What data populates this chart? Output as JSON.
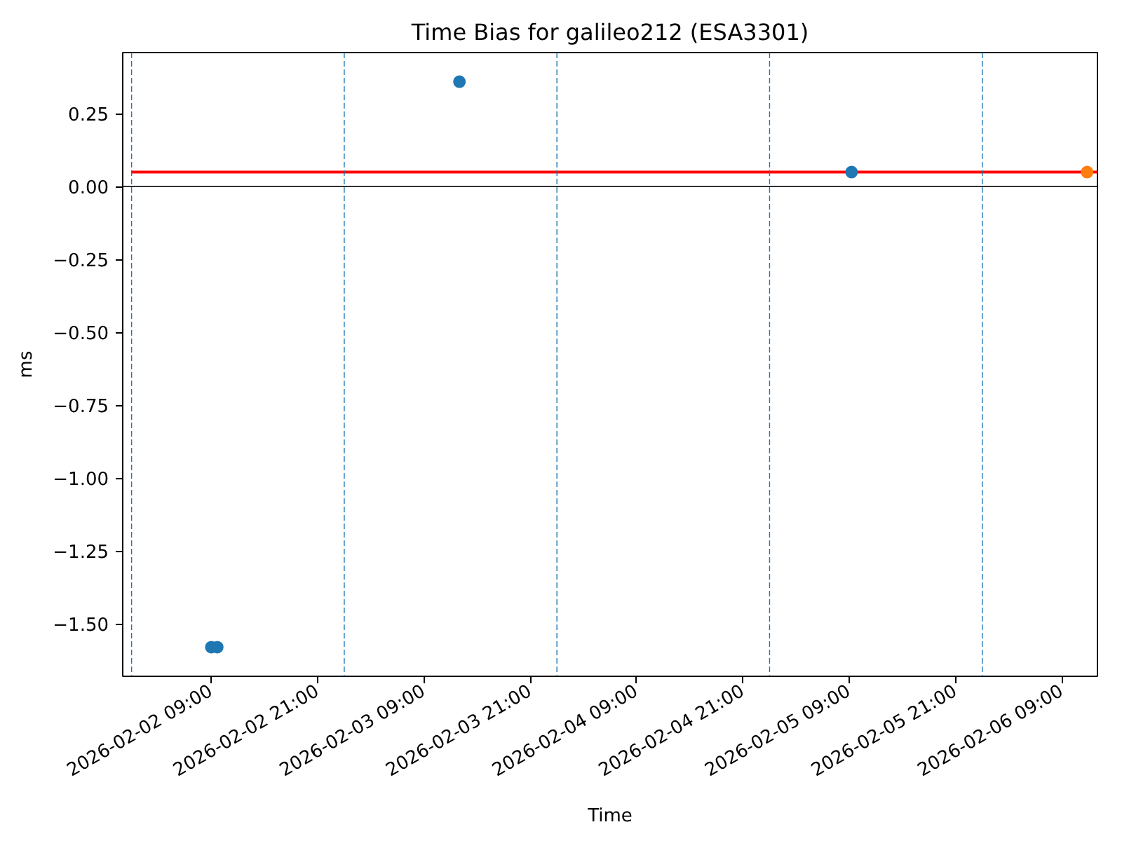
{
  "chart_data": {
    "type": "scatter",
    "title": "Time Bias for galileo212 (ESA3301)",
    "xlabel": "Time",
    "ylabel": "ms",
    "xlim": [
      "2026-02-01T23:00",
      "2026-02-06T13:00"
    ],
    "xticks": [
      {
        "value": "2026-02-02T09:00",
        "label": "2026-02-02 09:00"
      },
      {
        "value": "2026-02-02T21:00",
        "label": "2026-02-02 21:00"
      },
      {
        "value": "2026-02-03T09:00",
        "label": "2026-02-03 09:00"
      },
      {
        "value": "2026-02-03T21:00",
        "label": "2026-02-03 21:00"
      },
      {
        "value": "2026-02-04T09:00",
        "label": "2026-02-04 09:00"
      },
      {
        "value": "2026-02-04T21:00",
        "label": "2026-02-04 21:00"
      },
      {
        "value": "2026-02-05T09:00",
        "label": "2026-02-05 09:00"
      },
      {
        "value": "2026-02-05T21:00",
        "label": "2026-02-05 21:00"
      },
      {
        "value": "2026-02-06T09:00",
        "label": "2026-02-06 09:00"
      }
    ],
    "ylim": [
      -1.68,
      0.46
    ],
    "yticks": [
      {
        "value": -1.5,
        "label": "−1.50"
      },
      {
        "value": -1.25,
        "label": "−1.25"
      },
      {
        "value": -1.0,
        "label": "−1.00"
      },
      {
        "value": -0.75,
        "label": "−0.75"
      },
      {
        "value": -0.5,
        "label": "−0.50"
      },
      {
        "value": -0.25,
        "label": "−0.25"
      },
      {
        "value": 0,
        "label": "0.00"
      },
      {
        "value": 0.25,
        "label": "0.25"
      }
    ],
    "marker": "circle",
    "series": [
      {
        "type": "line",
        "color": "#ff0000",
        "marker": "none",
        "x": [
          "2026-02-02T00:00",
          "2026-02-06T13:00"
        ],
        "values": [
          0.05,
          0.05
        ]
      },
      {
        "color": "#1f77b4",
        "x": [
          "2026-02-02T09:00",
          "2026-02-02T09:40",
          "2026-02-03T13:00",
          "2026-02-05T09:15"
        ],
        "values": [
          -1.58,
          -1.58,
          0.36,
          0.05
        ]
      },
      {
        "color": "#ff7f0e",
        "x": [
          "2026-02-06T11:50"
        ],
        "values": [
          0.05
        ]
      }
    ],
    "ref_lines": [
      {
        "axis": "y",
        "value": 0,
        "color": "#000000"
      },
      {
        "axis": "x",
        "value": "2026-02-02T00:00",
        "color": "#1f77b4",
        "line_style": "dashed"
      },
      {
        "axis": "x",
        "value": "2026-02-03T00:00",
        "color": "#1f77b4",
        "line_style": "dashed"
      },
      {
        "axis": "x",
        "value": "2026-02-04T00:00",
        "color": "#1f77b4",
        "line_style": "dashed"
      },
      {
        "axis": "x",
        "value": "2026-02-05T00:00",
        "color": "#1f77b4",
        "line_style": "dashed"
      },
      {
        "axis": "x",
        "value": "2026-02-06T00:00",
        "color": "#1f77b4",
        "line_style": "dashed"
      }
    ]
  }
}
